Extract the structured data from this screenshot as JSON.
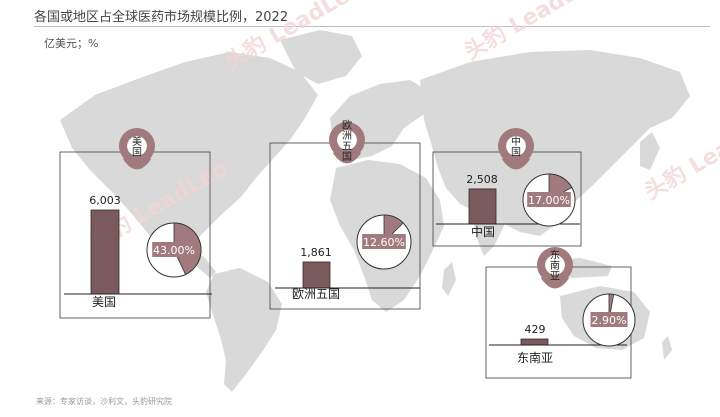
{
  "title": "各国或地区占全球医药市场规模比例，2022",
  "unit": "亿美元；%",
  "source": "来源：专家访谈，沙利文，头豹研究院",
  "watermark": "头豹 LeadLeo",
  "colors": {
    "bar": "#7a5a5c",
    "pin": "#a07a7c",
    "map": "#d9d9d9",
    "slice": "#a07a7c",
    "pct_bg": "#a07a7c"
  },
  "chart_data": {
    "type": "bar",
    "categories": [
      "美国",
      "欧洲五国",
      "中国",
      "东南亚"
    ],
    "values": [
      6003,
      1861,
      2508,
      429
    ],
    "value_labels": [
      "6,003",
      "1,861",
      "2,508",
      "429"
    ],
    "shares": [
      43.0,
      12.6,
      17.0,
      2.9
    ],
    "share_labels": [
      "43.00%",
      "12.60%",
      "17.00%",
      "2.90%"
    ],
    "pin_labels": [
      [
        "美",
        "国"
      ],
      [
        "欧",
        "洲",
        "五",
        "国"
      ],
      [
        "中",
        "国"
      ],
      [
        "东",
        "南",
        "亚"
      ]
    ]
  }
}
